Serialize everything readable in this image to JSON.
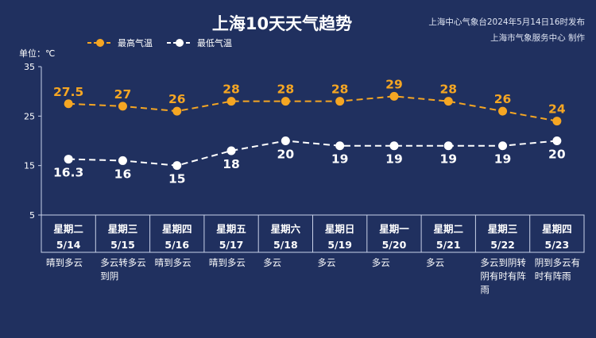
{
  "header": {
    "title": "上海10天天气趋势",
    "issuer_line1": "上海中心气象台2024年5月14日16时发布",
    "issuer_line2": "上海市气象服务中心 制作",
    "unit_label": "单位：℃"
  },
  "colors": {
    "background": "#20305f",
    "high": "#f5a623",
    "low": "#ffffff",
    "axis": "#c9d2e8"
  },
  "chart_data": {
    "type": "line",
    "ylim": [
      5,
      35
    ],
    "yticks": [
      5,
      15,
      25,
      35
    ],
    "grid": false,
    "legend": "top-left",
    "x": [
      {
        "weekday": "星期二",
        "date": "5/14",
        "weather": "晴到多云"
      },
      {
        "weekday": "星期三",
        "date": "5/15",
        "weather": "多云转多云到阴"
      },
      {
        "weekday": "星期四",
        "date": "5/16",
        "weather": "晴到多云"
      },
      {
        "weekday": "星期五",
        "date": "5/17",
        "weather": "晴到多云"
      },
      {
        "weekday": "星期六",
        "date": "5/18",
        "weather": "多云"
      },
      {
        "weekday": "星期日",
        "date": "5/19",
        "weather": "多云"
      },
      {
        "weekday": "星期一",
        "date": "5/20",
        "weather": "多云"
      },
      {
        "weekday": "星期二",
        "date": "5/21",
        "weather": "多云"
      },
      {
        "weekday": "星期三",
        "date": "5/22",
        "weather": "多云到阴转阴有时有阵雨"
      },
      {
        "weekday": "星期四",
        "date": "5/23",
        "weather": "阴到多云有时有阵雨"
      }
    ],
    "series": [
      {
        "name": "最高气温",
        "values": [
          "27.5",
          "27",
          "26",
          "28",
          "28",
          "28",
          "29",
          "28",
          "26",
          "24"
        ]
      },
      {
        "name": "最低气温",
        "values": [
          "16.3",
          "16",
          "15",
          "18",
          "20",
          "19",
          "19",
          "19",
          "19",
          "20"
        ]
      }
    ]
  }
}
